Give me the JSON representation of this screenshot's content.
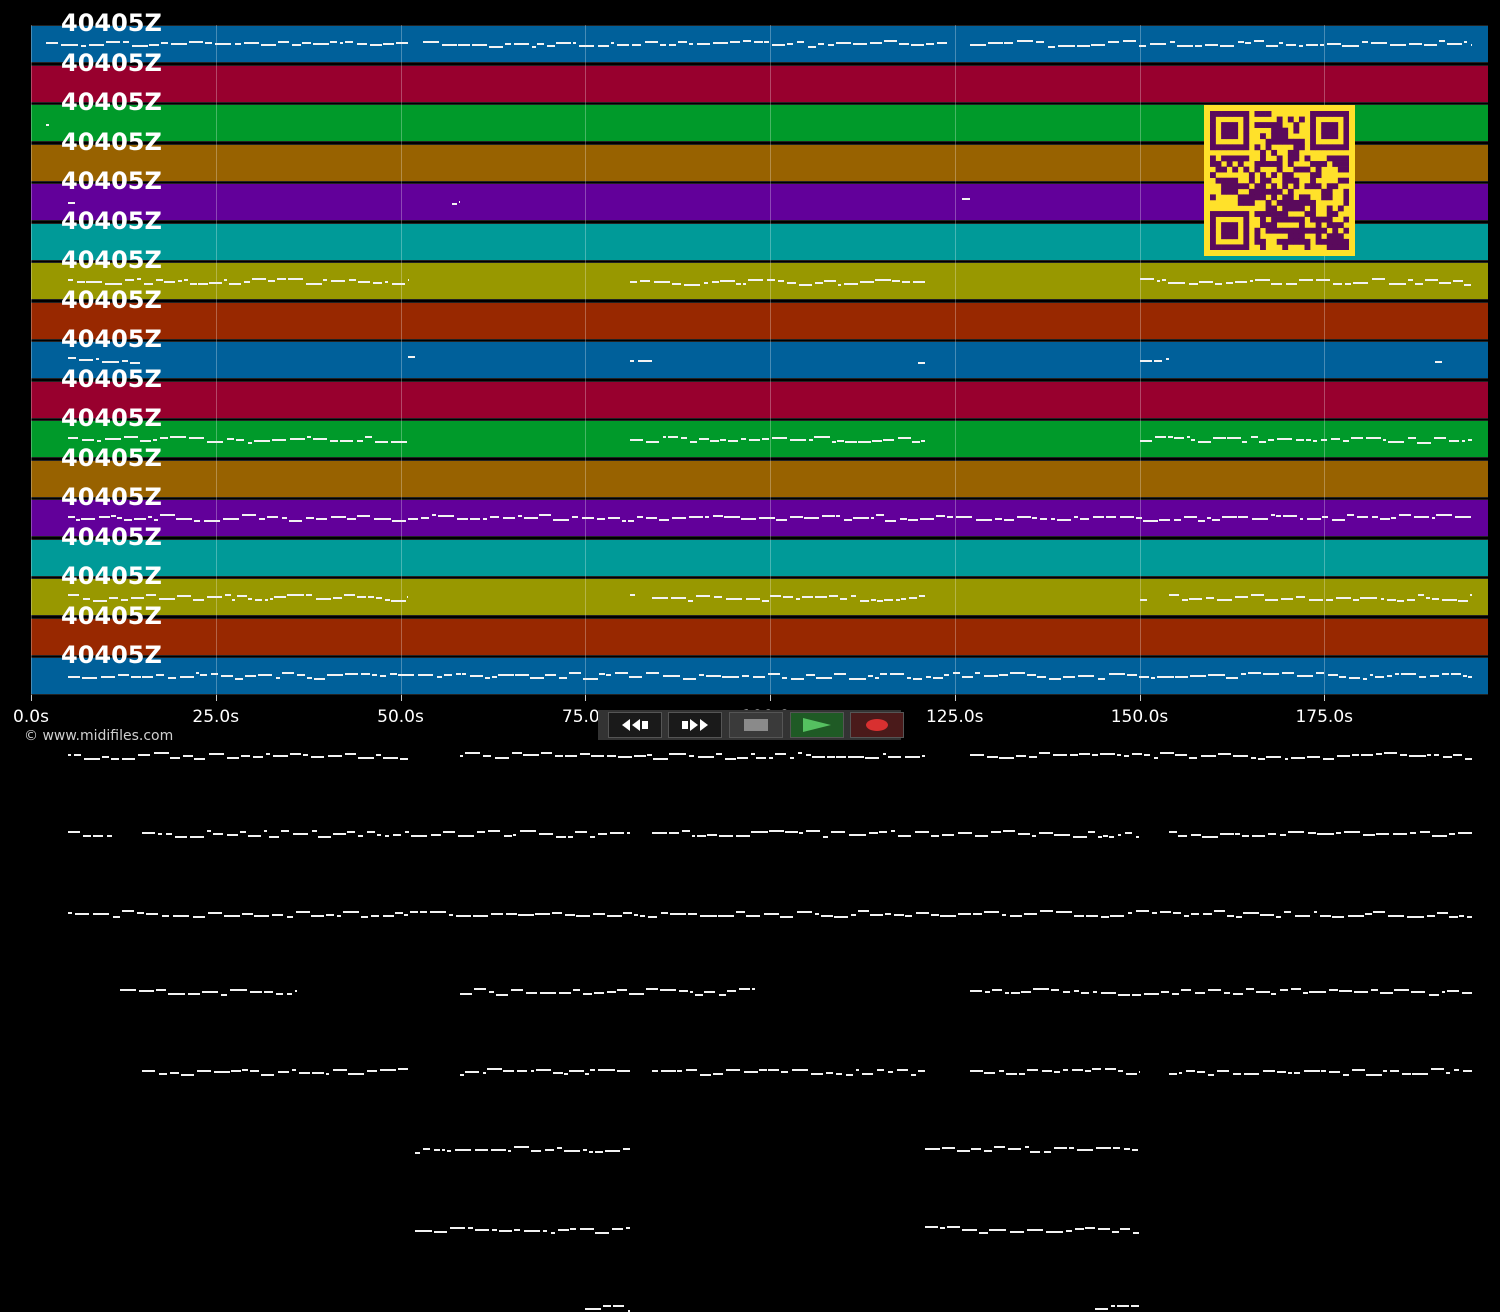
{
  "tracks": [
    {
      "label": "40405Z",
      "color": "#00609a"
    },
    {
      "label": "40405Z",
      "color": "#98002e"
    },
    {
      "label": "40405Z",
      "color": "#009a2a"
    },
    {
      "label": "40405Z",
      "color": "#986200"
    },
    {
      "label": "40405Z",
      "color": "#62009a"
    },
    {
      "label": "40405Z",
      "color": "#009a98"
    },
    {
      "label": "40405Z",
      "color": "#989800"
    },
    {
      "label": "40405Z",
      "color": "#982800"
    },
    {
      "label": "40405Z",
      "color": "#00609a"
    },
    {
      "label": "40405Z",
      "color": "#98002e"
    },
    {
      "label": "40405Z",
      "color": "#009a2a"
    },
    {
      "label": "40405Z",
      "color": "#986200"
    },
    {
      "label": "40405Z",
      "color": "#62009a"
    },
    {
      "label": "40405Z",
      "color": "#009a98"
    },
    {
      "label": "40405Z",
      "color": "#989800"
    },
    {
      "label": "40405Z",
      "color": "#982800"
    },
    {
      "label": "40405Z",
      "color": "#00609a"
    }
  ],
  "timeline": {
    "ticks": [
      "0.0s",
      "25.0s",
      "50.0s",
      "75.0s",
      "100.0s",
      "125.0s",
      "150.0s",
      "175.0s"
    ]
  },
  "copyright": "© www.midifiles.com",
  "controls": {
    "rewind": "rewind-icon",
    "forward": "fast-forward-icon",
    "stop": "stop-icon",
    "play": "play-icon",
    "record": "record-icon"
  },
  "colors": {
    "background": "#000000",
    "note": "#f2f2f2",
    "qr_bg": "#ffe12a",
    "qr_fg": "#5a0a5c",
    "play": "#55c060",
    "record": "#d83030"
  }
}
